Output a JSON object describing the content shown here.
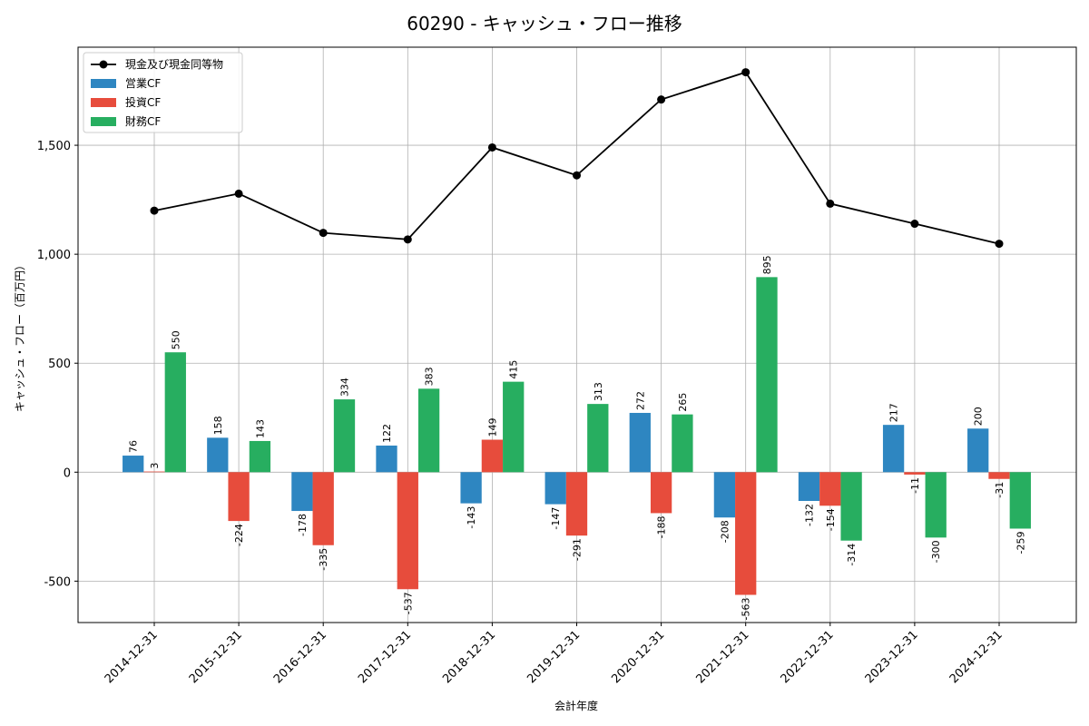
{
  "chart_data": {
    "type": "bar",
    "title": "60290 - キャッシュ・フロー推移",
    "xlabel": "会計年度",
    "ylabel": "キャッシュ・フロー（百万円）",
    "ylim": [
      -690,
      1950
    ],
    "yticks": [
      -500,
      0,
      500,
      1000,
      1500
    ],
    "ytick_labels": [
      "-500",
      "0",
      "500",
      "1,000",
      "1,500"
    ],
    "grid": true,
    "legend_position": "top-left",
    "categories": [
      "2014-12-31",
      "2015-12-31",
      "2016-12-31",
      "2017-12-31",
      "2018-12-31",
      "2019-12-31",
      "2020-12-31",
      "2021-12-31",
      "2022-12-31",
      "2023-12-31",
      "2024-12-31"
    ],
    "series": [
      {
        "name": "営業CF",
        "kind": "bar",
        "color": "#2e86c1",
        "values": [
          76,
          158,
          -178,
          122,
          -143,
          -147,
          272,
          -208,
          -132,
          217,
          200
        ],
        "labels": [
          "76",
          "158",
          "-178",
          "122",
          "-143",
          "-147",
          "272",
          "-208",
          "-132",
          "217",
          "200"
        ]
      },
      {
        "name": "投資CF",
        "kind": "bar",
        "color": "#e74c3c",
        "values": [
          3,
          -224,
          -335,
          -537,
          149,
          -291,
          -188,
          -563,
          -154,
          -11,
          -31
        ],
        "labels": [
          "3",
          "-224",
          "-335",
          "-537",
          "149",
          "-291",
          "-188",
          "-563",
          "-154",
          "-11",
          "-31"
        ]
      },
      {
        "name": "財務CF",
        "kind": "bar",
        "color": "#27ae60",
        "values": [
          550,
          143,
          334,
          383,
          415,
          313,
          265,
          895,
          -314,
          -300,
          -259
        ],
        "labels": [
          "550",
          "143",
          "334",
          "383",
          "415",
          "313",
          "265",
          "895",
          "-314",
          "-300",
          "-259"
        ]
      },
      {
        "name": "現金及び現金同等物",
        "kind": "line",
        "color": "#000000",
        "values": [
          1200,
          1278,
          1098,
          1068,
          1490,
          1362,
          1710,
          1835,
          1232,
          1140,
          1048
        ]
      }
    ]
  }
}
